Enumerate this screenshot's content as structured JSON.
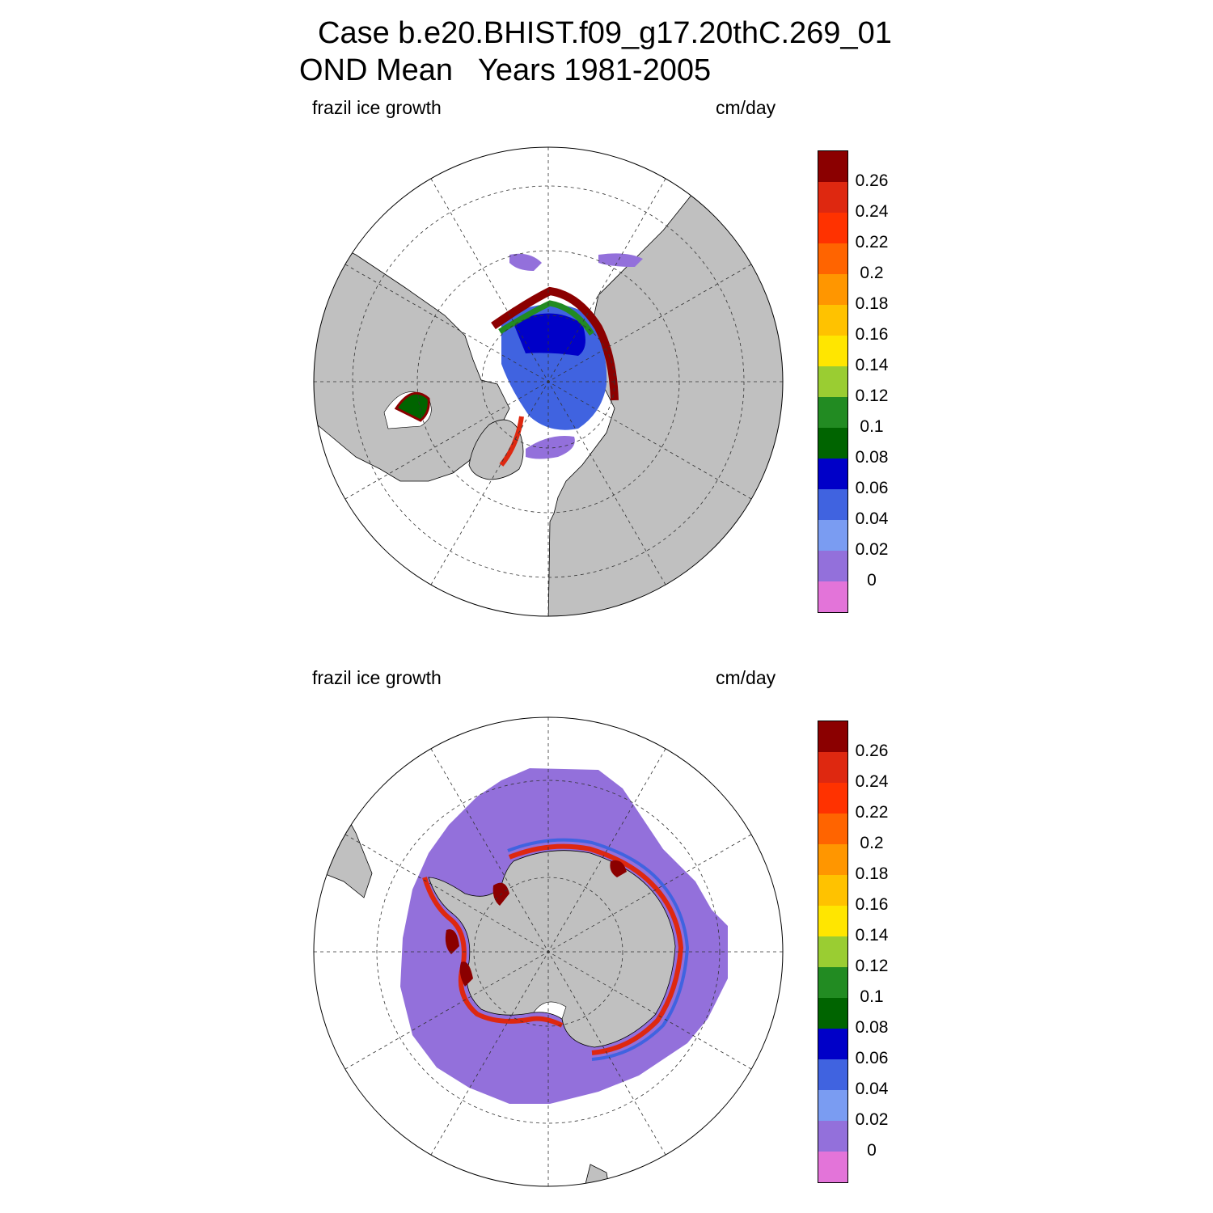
{
  "title": {
    "line1": "Case b.e20.BHIST.f09_g17.20thC.269_01",
    "line2": "OND Mean   Years 1981-2005"
  },
  "panels": [
    {
      "id": "arctic",
      "left_label": "frazil ice growth",
      "right_label": "cm/day",
      "hemisphere": "north"
    },
    {
      "id": "antarctic",
      "left_label": "frazil ice growth",
      "right_label": "cm/day",
      "hemisphere": "south"
    }
  ],
  "colorbar": {
    "colors": [
      "#e374d9",
      "#9370db",
      "#7a9cf2",
      "#4063e0",
      "#0000c8",
      "#006400",
      "#228b22",
      "#9acd32",
      "#ffe600",
      "#ffc200",
      "#ff9600",
      "#ff6400",
      "#ff3200",
      "#de2810",
      "#8b0000"
    ],
    "ticks": [
      "0",
      "0.02",
      "0.04",
      "0.06",
      "0.08",
      "0.1",
      "0.12",
      "0.14",
      "0.16",
      "0.18",
      "0.2",
      "0.22",
      "0.24",
      "0.26"
    ]
  },
  "colors": {
    "land": "#c0c0c0",
    "no_data": "#ffffff",
    "coast": "#000000",
    "grid": "#333333"
  }
}
